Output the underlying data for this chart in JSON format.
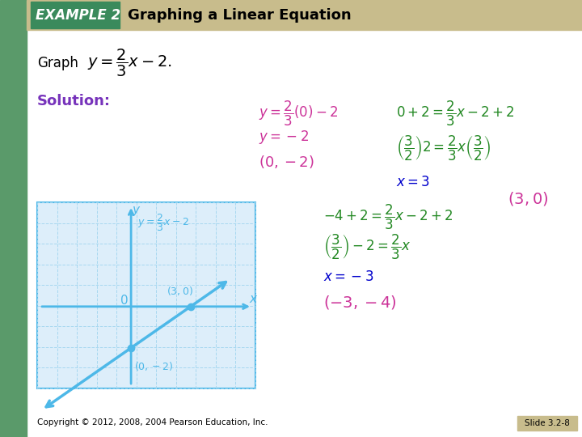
{
  "title_box_color": "#3a8a5c",
  "title_bar_color": "#c8bc8c",
  "title_example": "EXAMPLE 2",
  "title_main": "Graphing a Linear Equation",
  "bg_color": "#ffffff",
  "left_bar_color": "#5a9a6a",
  "graph_bg": "#ddeefa",
  "graph_line_color": "#4db8e8",
  "graph_grid_color": "#a8d8f0",
  "graph_dot_color": "#4db8e8",
  "copyright_text": "Copyright © 2012, 2008, 2004 Pearson Education, Inc.",
  "slide_text": "Slide 3.2-8",
  "purple_color": "#7733bb",
  "magenta_color": "#cc3399",
  "red_color": "#cc0000",
  "green_color": "#228822",
  "blue_color": "#0000cc",
  "orange_color": "#dd8800",
  "cyan_color": "#4db8e8"
}
